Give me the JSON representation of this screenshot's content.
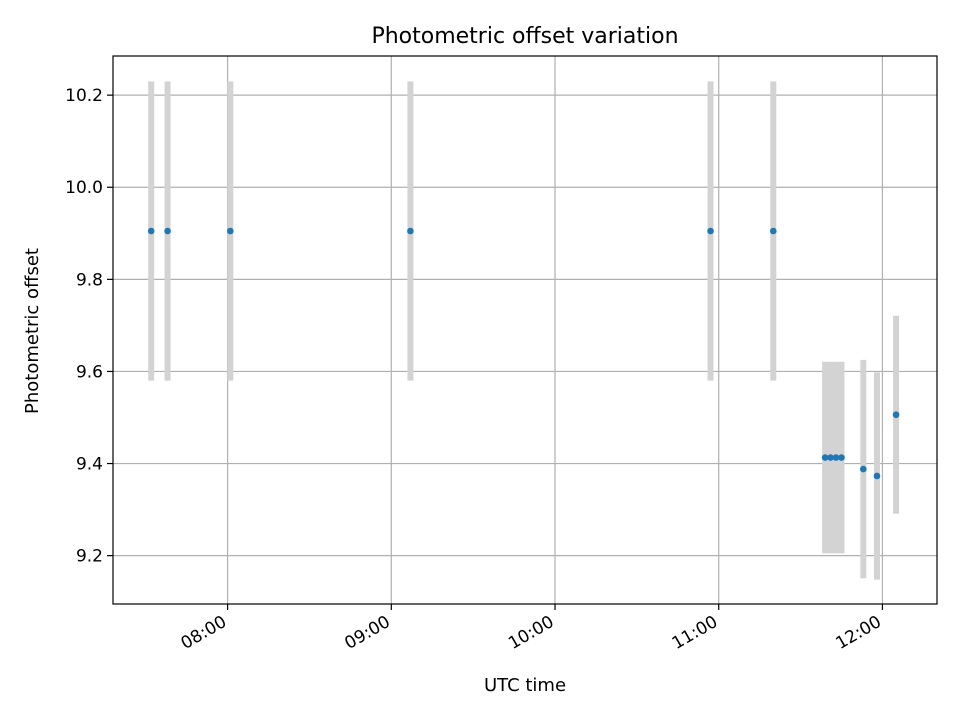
{
  "chart_data": {
    "type": "scatter",
    "title": "Photometric offset variation",
    "xlabel": "UTC time",
    "ylabel": "Photometric offset",
    "xlim": [
      "07:18",
      "12:20"
    ],
    "ylim": [
      9.095,
      10.285
    ],
    "x_ticks": [
      "08:00",
      "09:00",
      "10:00",
      "11:00",
      "12:00"
    ],
    "y_ticks": [
      9.2,
      9.4,
      9.6,
      9.8,
      10.0,
      10.2
    ],
    "y_tick_labels": [
      "9.2",
      "9.4",
      "9.6",
      "9.8",
      "10.0",
      "10.2"
    ],
    "grid": true,
    "colors": {
      "point": "#1f77b4",
      "errorbar": "#d3d3d3",
      "grid": "#b0b0b0",
      "axes": "#000000"
    },
    "points": [
      {
        "x": "07:32",
        "y": 9.905,
        "err": 0.325
      },
      {
        "x": "07:38",
        "y": 9.905,
        "err": 0.325
      },
      {
        "x": "08:01",
        "y": 9.905,
        "err": 0.325
      },
      {
        "x": "09:07",
        "y": 9.905,
        "err": 0.325
      },
      {
        "x": "10:57",
        "y": 9.905,
        "err": 0.325
      },
      {
        "x": "11:20",
        "y": 9.905,
        "err": 0.325
      },
      {
        "x": "11:39",
        "y": 9.413,
        "err": 0.208
      },
      {
        "x": "11:41",
        "y": 9.413,
        "err": 0.208
      },
      {
        "x": "11:43",
        "y": 9.413,
        "err": 0.208
      },
      {
        "x": "11:45",
        "y": 9.413,
        "err": 0.208
      },
      {
        "x": "11:53",
        "y": 9.388,
        "err": 0.237
      },
      {
        "x": "11:58",
        "y": 9.373,
        "err": 0.225
      },
      {
        "x": "12:05",
        "y": 9.506,
        "err": 0.215
      }
    ]
  }
}
